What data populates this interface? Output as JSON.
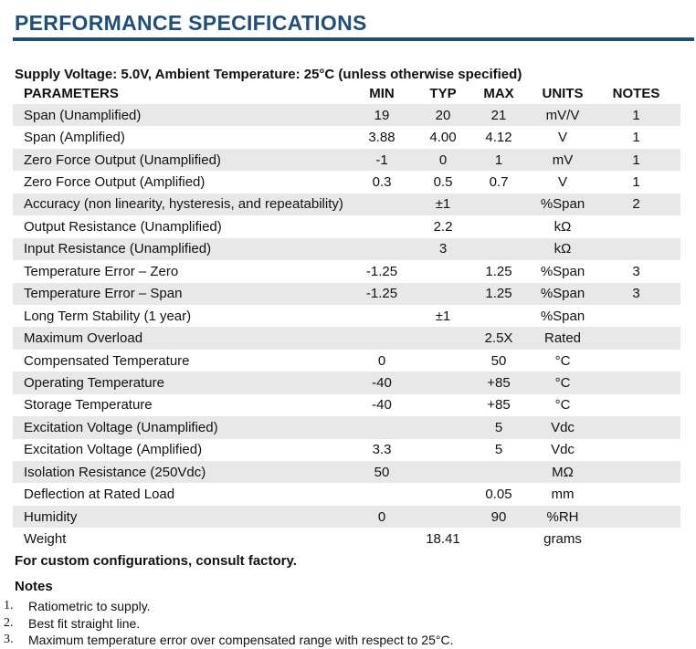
{
  "title": "PERFORMANCE SPECIFICATIONS",
  "colors": {
    "accent": "#1f4e79",
    "row_shade": "#e8e8e8"
  },
  "subtitle": "Supply Voltage: 5.0V, Ambient Temperature: 25°C (unless otherwise specified)",
  "table": {
    "headers": [
      "PARAMETERS",
      "MIN",
      "TYP",
      "MAX",
      "UNITS",
      "NOTES"
    ],
    "rows": [
      [
        "Span (Unamplified)",
        "19",
        "20",
        "21",
        "mV/V",
        "1"
      ],
      [
        "Span (Amplified)",
        "3.88",
        "4.00",
        "4.12",
        "V",
        "1"
      ],
      [
        "Zero Force Output (Unamplified)",
        "-1",
        "0",
        "1",
        "mV",
        "1"
      ],
      [
        "Zero Force Output (Amplified)",
        "0.3",
        "0.5",
        "0.7",
        "V",
        "1"
      ],
      [
        "Accuracy (non linearity, hysteresis, and repeatability)",
        "",
        "±1",
        "",
        "%Span",
        "2"
      ],
      [
        "Output Resistance (Unamplified)",
        "",
        "2.2",
        "",
        "kΩ",
        ""
      ],
      [
        "Input Resistance (Unamplified)",
        "",
        "3",
        "",
        "kΩ",
        ""
      ],
      [
        "Temperature Error – Zero",
        "-1.25",
        "",
        "1.25",
        "%Span",
        "3"
      ],
      [
        "Temperature Error – Span",
        "-1.25",
        "",
        "1.25",
        "%Span",
        "3"
      ],
      [
        "Long Term Stability (1 year)",
        "",
        "±1",
        "",
        "%Span",
        ""
      ],
      [
        "Maximum Overload",
        "",
        "",
        "2.5X",
        "Rated",
        ""
      ],
      [
        "Compensated Temperature",
        "0",
        "",
        "50",
        "°C",
        ""
      ],
      [
        "Operating Temperature",
        "-40",
        "",
        "+85",
        "°C",
        ""
      ],
      [
        "Storage Temperature",
        "-40",
        "",
        "+85",
        "°C",
        ""
      ],
      [
        "Excitation Voltage (Unamplified)",
        "",
        "",
        "5",
        "Vdc",
        ""
      ],
      [
        "Excitation Voltage (Amplified)",
        "3.3",
        "",
        "5",
        "Vdc",
        ""
      ],
      [
        "Isolation Resistance (250Vdc)",
        "50",
        "",
        "",
        "MΩ",
        ""
      ],
      [
        "Deflection at Rated Load",
        "",
        "",
        "0.05",
        "mm",
        ""
      ],
      [
        "Humidity",
        "0",
        "",
        "90",
        "%RH",
        ""
      ],
      [
        "Weight",
        "",
        "18.41",
        "",
        "grams",
        ""
      ]
    ]
  },
  "footer_note": "For custom configurations, consult factory.",
  "notes": {
    "heading": "Notes",
    "items": [
      {
        "num": "1.",
        "text": "Ratiometric to supply."
      },
      {
        "num": "2.",
        "text": "Best fit straight line."
      },
      {
        "num": "3.",
        "text": "Maximum temperature error over compensated range with respect to 25°C."
      }
    ]
  }
}
